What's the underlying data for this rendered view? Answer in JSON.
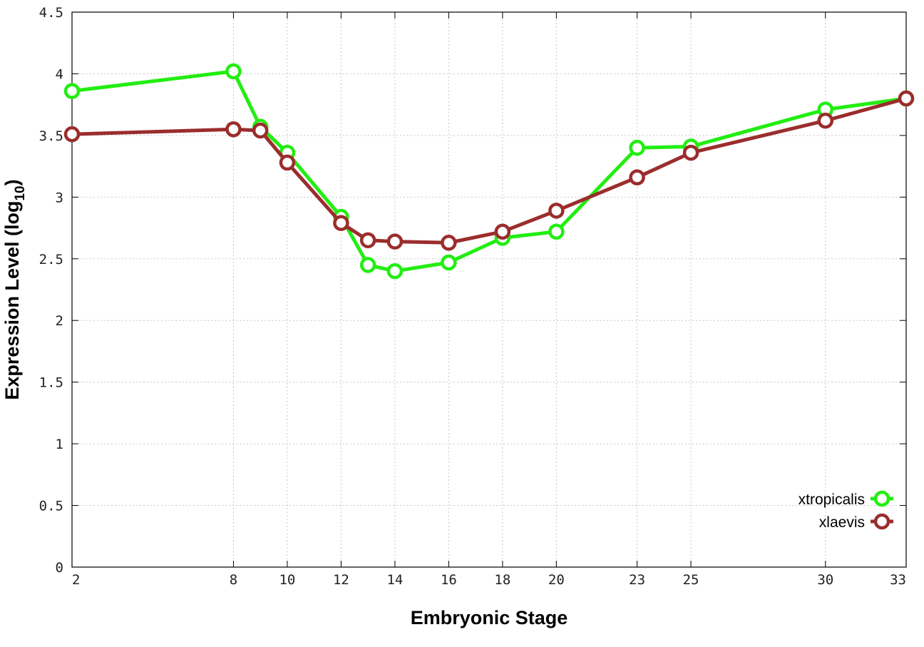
{
  "chart_data": {
    "type": "line",
    "xlabel": "Embryonic Stage",
    "ylabel_main": "Expression Level (log",
    "ylabel_sub": "10",
    "ylabel_close": ")",
    "x": [
      2,
      8,
      9,
      10,
      12,
      13,
      14,
      16,
      18,
      20,
      23,
      25,
      30,
      33
    ],
    "x_ticks": [
      2,
      8,
      10,
      12,
      14,
      16,
      18,
      20,
      23,
      25,
      30,
      33
    ],
    "y_ticks": [
      "0",
      "0.5",
      "1",
      "1.5",
      "2",
      "2.5",
      "3",
      "3.5",
      "4",
      "4.5"
    ],
    "xlim": [
      2,
      33
    ],
    "ylim": [
      0,
      4.5
    ],
    "grid": true,
    "legend_position": "bottom-right",
    "series": [
      {
        "name": "xtropicalis",
        "color": "#22ee11",
        "values": [
          3.86,
          4.02,
          3.57,
          3.36,
          2.84,
          2.45,
          2.4,
          2.47,
          2.67,
          2.72,
          3.4,
          3.41,
          3.71,
          3.8
        ]
      },
      {
        "name": "xlaevis",
        "color": "#9b2d2d",
        "values": [
          3.51,
          3.55,
          3.54,
          3.28,
          2.79,
          2.65,
          2.64,
          2.63,
          2.72,
          2.89,
          3.16,
          3.36,
          3.62,
          3.8
        ]
      }
    ]
  }
}
